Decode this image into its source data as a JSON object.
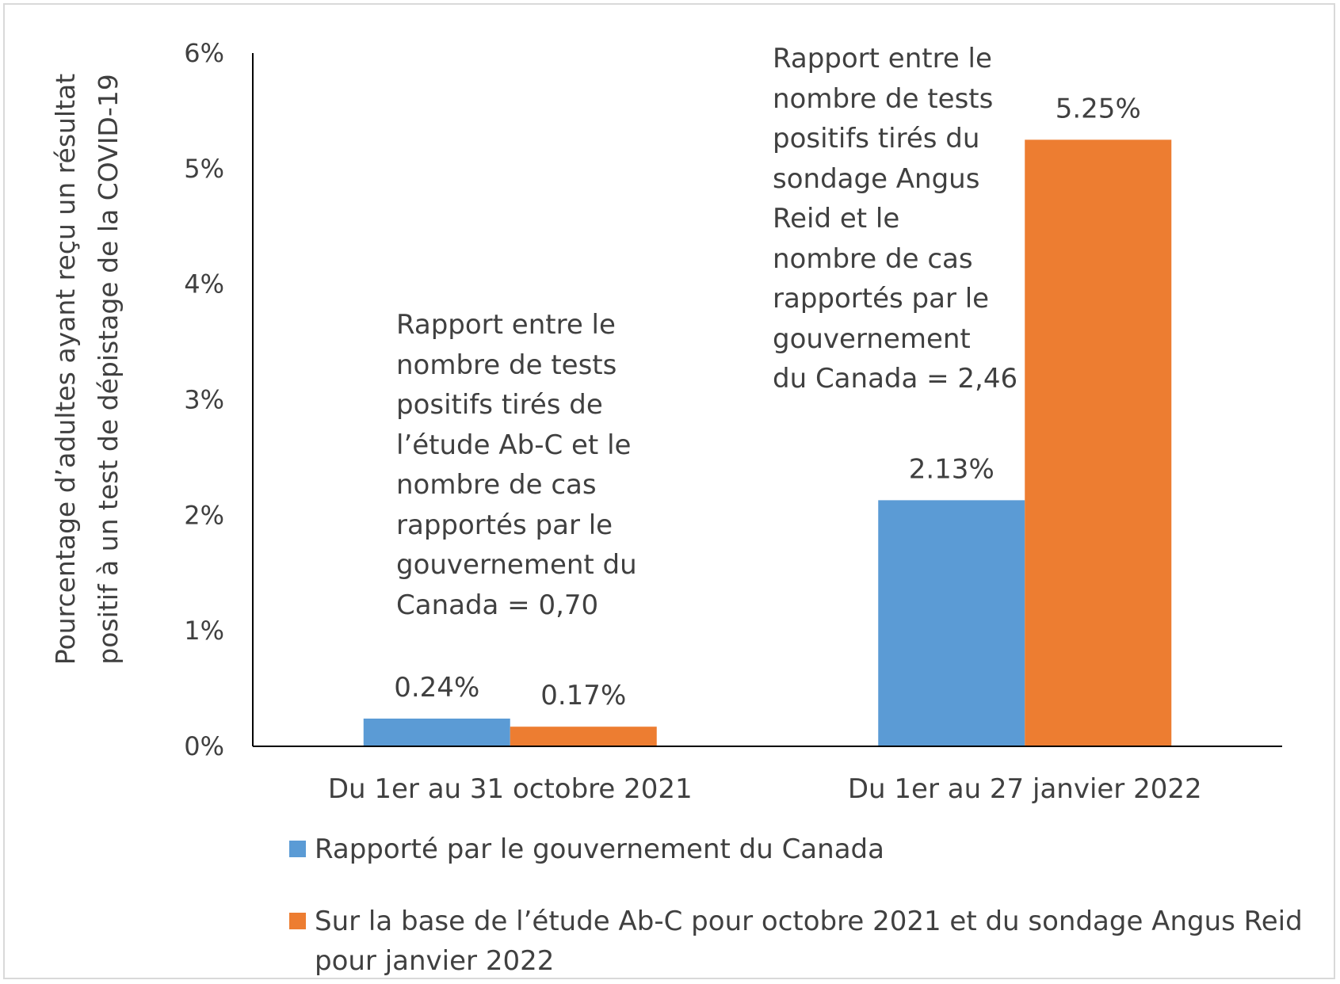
{
  "chart_data": {
    "type": "bar",
    "categories": [
      "Du 1er au 31 octobre 2021",
      "Du 1er au 27 janvier 2022"
    ],
    "series": [
      {
        "name": "Rapporté par le gouvernement du Canada",
        "values": [
          0.24,
          2.13
        ],
        "labels": [
          "0.24%",
          "2.13%"
        ],
        "color": "#5b9bd5"
      },
      {
        "name": "Sur la base de l’étude Ab-C pour octobre 2021 et du sondage Angus Reid pour janvier 2022",
        "values": [
          0.17,
          5.25
        ],
        "labels": [
          "0.17%",
          "5.25%"
        ],
        "color": "#ed7d31"
      }
    ],
    "ylabel_lines": [
      "Pourcentage d’adultes ayant reçu un résultat",
      "positif à un test de dépistage de la COVID-19"
    ],
    "ylim": [
      0,
      6
    ],
    "yticks": [
      0,
      1,
      2,
      3,
      4,
      5,
      6
    ],
    "ytick_labels": [
      "0%",
      "1%",
      "2%",
      "3%",
      "4%",
      "5%",
      "6%"
    ],
    "grid": false,
    "legend_position": "bottom",
    "annotations": [
      "Rapport entre le\nnombre de tests\npositifs tirés de\nl’étude Ab-C et le\nnombre de cas\nrapportés par le\ngouvernement du\nCanada = 0,70",
      "Rapport entre le\nnombre de tests\npositifs tirés du\nsondage Angus\nReid et le\nnombre de cas\nrapportés par le\ngouvernement\ndu Canada = 2,46"
    ]
  }
}
